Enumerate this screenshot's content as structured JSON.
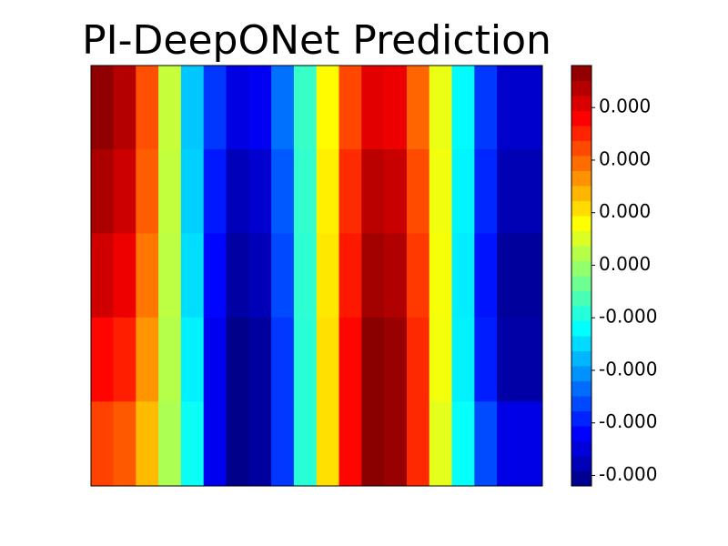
{
  "chart_data": {
    "type": "contour",
    "title": "PI-DeepONet Prediction",
    "colormap": "jet",
    "z": [
      [
        0.000416,
        0.000389,
        0.000268,
        8.5e-05,
        -0.000114,
        -0.000227,
        -0.000293,
        -0.00028,
        -0.000181,
        -2.6e-05,
        0.000132,
        0.000274,
        0.000353,
        0.000344,
        0.000251,
        0.000114,
        -7.2e-05,
        -0.000226,
        -0.00031,
        -0.00031
      ],
      [
        0.000396,
        0.00037,
        0.000256,
        8.2e-05,
        -0.000107,
        -0.000251,
        -0.000323,
        -0.000308,
        -0.0002,
        -3.1e-05,
        0.000142,
        0.000296,
        0.000383,
        0.000372,
        0.000271,
        0.000119,
        -7.7e-05,
        -0.00024,
        -0.000329,
        -0.000329
      ],
      [
        0.000367,
        0.000343,
        0.000237,
        7.8e-05,
        -9.6e-05,
        -0.000266,
        -0.000342,
        -0.000327,
        -0.000213,
        -3.5e-05,
        0.000148,
        0.000311,
        0.000402,
        0.000391,
        0.000285,
        0.000124,
        -8.3e-05,
        -0.000255,
        -0.000348,
        -0.000348
      ],
      [
        0.000327,
        0.000306,
        0.000213,
        7.2e-05,
        -8.1e-05,
        -0.000282,
        -0.000362,
        -0.000346,
        -0.000226,
        -3.8e-05,
        0.000154,
        0.000326,
        0.000422,
        0.00041,
        0.000298,
        0.000121,
        -8e-05,
        -0.000247,
        -0.000339,
        -0.000339
      ],
      [
        0.000278,
        0.00026,
        0.000183,
        6.5e-05,
        -6.3e-05,
        -0.000282,
        -0.000362,
        -0.000346,
        -0.000226,
        -3.8e-05,
        0.000154,
        0.000326,
        0.000422,
        0.00041,
        0.000298,
        0.000109,
        -6.6e-05,
        -0.000211,
        -0.00029,
        -0.00029
      ]
    ],
    "clim": [
      -0.00037,
      0.00043
    ],
    "cticks": [
      {
        "value": 0.00035,
        "label": "0.000"
      },
      {
        "value": 0.00025,
        "label": "0.000"
      },
      {
        "value": 0.00015,
        "label": "0.000"
      },
      {
        "value": 5e-05,
        "label": "0.000"
      },
      {
        "value": -5e-05,
        "label": "-0.000"
      },
      {
        "value": -0.00015,
        "label": "-0.000"
      },
      {
        "value": -0.00025,
        "label": "-0.000"
      },
      {
        "value": -0.00035,
        "label": "-0.000"
      }
    ]
  }
}
